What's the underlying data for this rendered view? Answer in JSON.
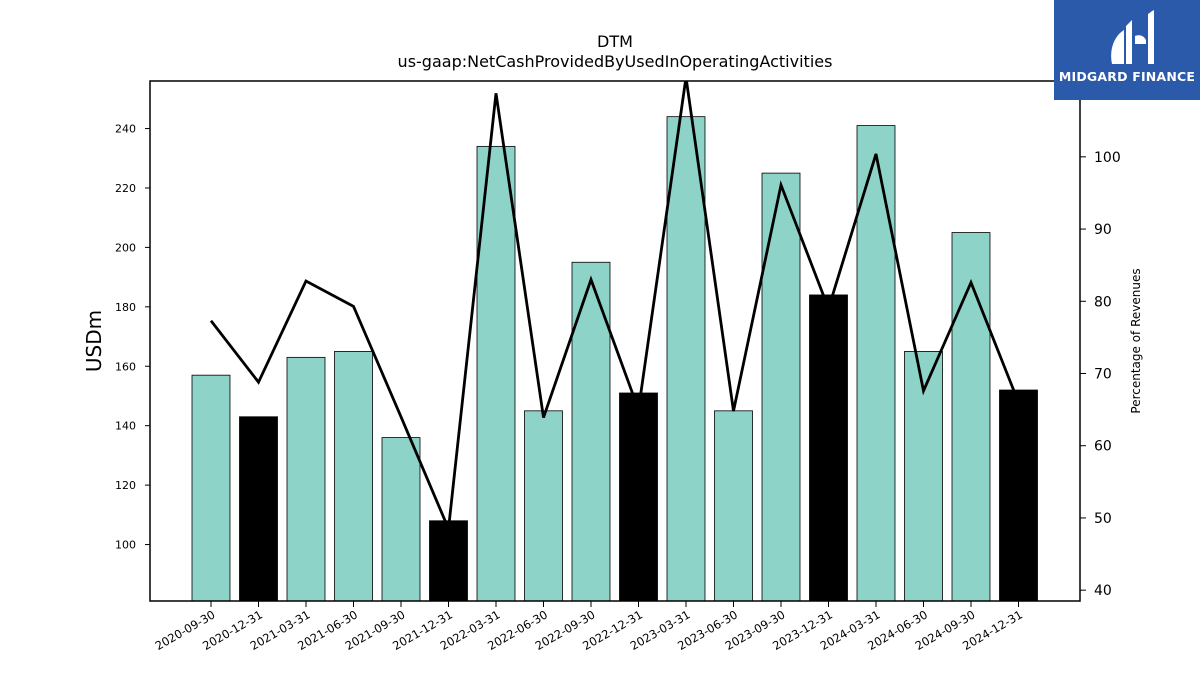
{
  "logo": {
    "text": "MIDGARD FINANCE",
    "background": "#2b5aab",
    "icon": "midgard-logo-icon"
  },
  "chart_data": {
    "type": "bar",
    "title": "DTM",
    "subtitle": "us-gaap:NetCashProvidedByUsedInOperatingActivities",
    "ylabel": "USDm",
    "y2label": "Percentage of Revenues",
    "ylim": [
      81,
      256
    ],
    "y2lim": [
      38.5,
      110.5
    ],
    "yticks": [
      100,
      120,
      140,
      160,
      180,
      200,
      220,
      240
    ],
    "y2ticks": [
      40,
      50,
      60,
      70,
      80,
      90,
      100
    ],
    "categories": [
      "2020-09-30",
      "2020-12-31",
      "2021-03-31",
      "2021-06-30",
      "2021-09-30",
      "2021-12-31",
      "2022-03-31",
      "2022-06-30",
      "2022-09-30",
      "2022-12-31",
      "2023-03-31",
      "2023-06-30",
      "2023-09-30",
      "2023-12-31",
      "2024-03-31",
      "2024-06-30",
      "2024-09-30",
      "2024-12-31"
    ],
    "bars": {
      "values": [
        157,
        143,
        163,
        165,
        136,
        108,
        234,
        145,
        195,
        151,
        244,
        145,
        225,
        184,
        241,
        165,
        205,
        152
      ],
      "colors": [
        "#8dd3c7",
        "#000000",
        "#8dd3c7",
        "#8dd3c7",
        "#8dd3c7",
        "#000000",
        "#8dd3c7",
        "#8dd3c7",
        "#8dd3c7",
        "#000000",
        "#8dd3c7",
        "#8dd3c7",
        "#8dd3c7",
        "#000000",
        "#8dd3c7",
        "#8dd3c7",
        "#8dd3c7",
        "#000000"
      ]
    },
    "line": {
      "axis": "secondary",
      "color": "#000000",
      "values": [
        77.3,
        68.8,
        82.8,
        79.3,
        64.0,
        48.5,
        108.8,
        63.9,
        83.0,
        65.0,
        111.0,
        64.8,
        96.1,
        79.0,
        100.4,
        67.6,
        82.6,
        66.0
      ]
    },
    "grid": false,
    "legend": "none"
  }
}
